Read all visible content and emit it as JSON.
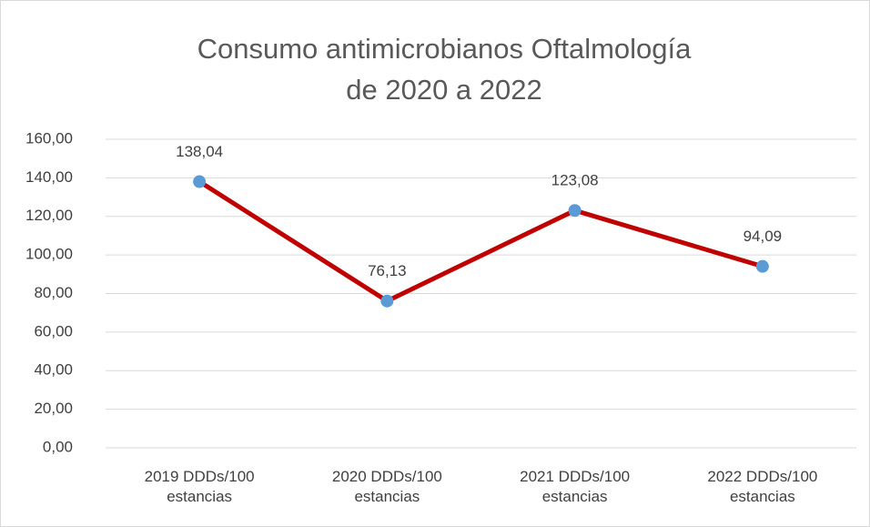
{
  "chart_data": {
    "type": "line",
    "title": [
      "Consumo antimicrobianos Oftalmología",
      "de 2020 a 2022"
    ],
    "categories": [
      "2019 DDDs/100 estancias",
      "2020 DDDs/100 estancias",
      "2021 DDDs/100 estancias",
      "2022 DDDs/100 estancias"
    ],
    "series": [
      {
        "color": "#c00000",
        "marker_color": "#5b9bd5",
        "values": [
          138.04,
          76.13,
          123.08,
          94.09
        ],
        "value_labels": [
          "138,04",
          "76,13",
          "123,08",
          "94,09"
        ]
      }
    ],
    "ylim": [
      0,
      160
    ],
    "yticks": [
      {
        "value": 0,
        "label": "0,00"
      },
      {
        "value": 20,
        "label": "20,00"
      },
      {
        "value": 40,
        "label": "40,00"
      },
      {
        "value": 60,
        "label": "60,00"
      },
      {
        "value": 80,
        "label": "80,00"
      },
      {
        "value": 100,
        "label": "100,00"
      },
      {
        "value": 120,
        "label": "120,00"
      },
      {
        "value": 140,
        "label": "140,00"
      },
      {
        "value": 160,
        "label": "160,00"
      }
    ],
    "grid": true
  }
}
